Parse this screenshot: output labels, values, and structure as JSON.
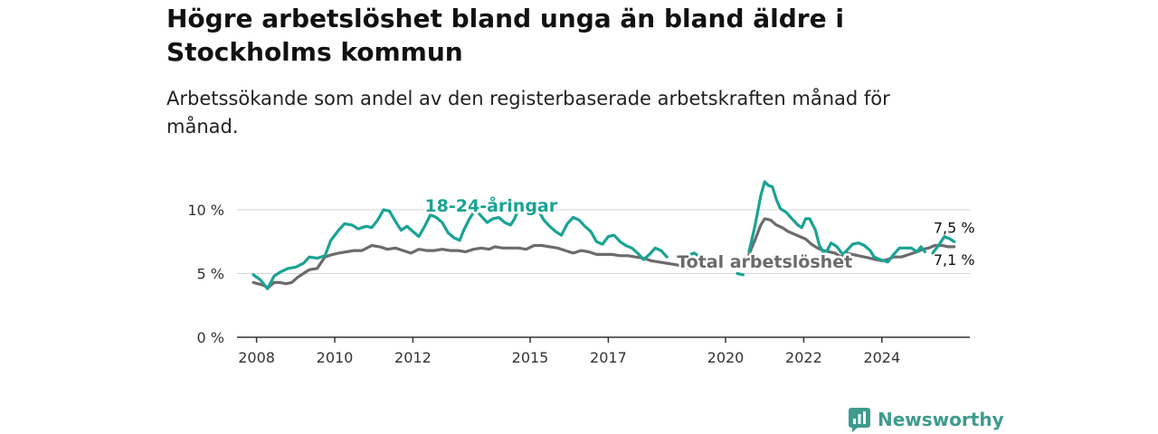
{
  "header": {
    "title": "Högre arbetslöshet bland unga än bland äldre i Stockholms kommun",
    "subtitle": "Arbetssökande som andel av den registerbaserade arbetskraften månad för månad."
  },
  "brand": {
    "name": "Newsworthy",
    "icon": "newsworthy-logo-icon",
    "color": "#3e9b8d"
  },
  "chart_data": {
    "type": "line",
    "title": "Högre arbetslöshet bland unga än bland äldre i Stockholms kommun",
    "subtitle": "Arbetssökande som andel av den registerbaserade arbetskraften månad för månad.",
    "xlabel": "",
    "ylabel": "",
    "x_ticks": [
      "2008",
      "2010",
      "2012",
      "2015",
      "2017",
      "2020",
      "2022",
      "2024"
    ],
    "y_ticks": [
      "0 %",
      "5 %",
      "10 %"
    ],
    "ylim": [
      0,
      13
    ],
    "grid": "horizontal",
    "series": [
      {
        "name": "18-24-åringar",
        "color": "#19a394",
        "points": [
          [
            2007.92,
            4.9
          ],
          [
            2008.1,
            4.5
          ],
          [
            2008.28,
            3.8
          ],
          [
            2008.45,
            4.8
          ],
          [
            2008.6,
            5.1
          ],
          [
            2008.8,
            5.4
          ],
          [
            2009.0,
            5.5
          ],
          [
            2009.2,
            5.8
          ],
          [
            2009.35,
            6.3
          ],
          [
            2009.55,
            6.2
          ],
          [
            2009.75,
            6.4
          ],
          [
            2009.9,
            7.6
          ],
          [
            2010.1,
            8.4
          ],
          [
            2010.25,
            8.9
          ],
          [
            2010.45,
            8.8
          ],
          [
            2010.6,
            8.5
          ],
          [
            2010.8,
            8.7
          ],
          [
            2010.95,
            8.6
          ],
          [
            2011.1,
            9.2
          ],
          [
            2011.25,
            10.0
          ],
          [
            2011.4,
            9.9
          ],
          [
            2011.55,
            9.1
          ],
          [
            2011.7,
            8.4
          ],
          [
            2011.85,
            8.7
          ],
          [
            2012.0,
            8.3
          ],
          [
            2012.15,
            7.9
          ],
          [
            2012.3,
            8.7
          ],
          [
            2012.45,
            9.6
          ],
          [
            2012.6,
            9.4
          ],
          [
            2012.75,
            9.0
          ],
          [
            2012.9,
            8.2
          ],
          [
            2013.05,
            7.8
          ],
          [
            2013.2,
            7.6
          ],
          [
            2013.3,
            8.4
          ],
          [
            2013.45,
            9.3
          ],
          [
            2013.6,
            10.0
          ],
          [
            2013.75,
            9.5
          ],
          [
            2013.9,
            9.0
          ],
          [
            2014.05,
            9.3
          ],
          [
            2014.2,
            9.4
          ],
          [
            2014.35,
            9.0
          ],
          [
            2014.5,
            8.8
          ],
          [
            2014.6,
            9.3
          ],
          [
            2014.7,
            10.0
          ],
          null,
          [
            2015.2,
            10.0
          ],
          [
            2015.35,
            9.2
          ],
          [
            2015.5,
            8.7
          ],
          [
            2015.65,
            8.3
          ],
          [
            2015.8,
            8.0
          ],
          [
            2015.95,
            8.9
          ],
          [
            2016.1,
            9.4
          ],
          [
            2016.25,
            9.2
          ],
          [
            2016.4,
            8.7
          ],
          [
            2016.55,
            8.3
          ],
          [
            2016.7,
            7.5
          ],
          [
            2016.85,
            7.3
          ],
          [
            2017.0,
            7.9
          ],
          [
            2017.15,
            8.0
          ],
          [
            2017.3,
            7.5
          ],
          [
            2017.45,
            7.2
          ],
          [
            2017.6,
            7.0
          ],
          [
            2017.75,
            6.6
          ],
          [
            2017.9,
            6.1
          ],
          [
            2018.05,
            6.5
          ],
          [
            2018.2,
            7.0
          ],
          [
            2018.35,
            6.8
          ],
          [
            2018.5,
            6.3
          ],
          null,
          [
            2019.1,
            6.5
          ],
          [
            2019.2,
            6.6
          ],
          [
            2019.3,
            6.4
          ],
          null,
          [
            2020.3,
            5.0
          ],
          [
            2020.45,
            4.9
          ],
          null,
          [
            2020.6,
            6.7
          ],
          [
            2020.75,
            8.7
          ],
          [
            2020.9,
            11.1
          ],
          [
            2021.0,
            12.2
          ],
          [
            2021.1,
            11.9
          ],
          [
            2021.2,
            11.8
          ],
          [
            2021.3,
            10.8
          ],
          [
            2021.4,
            10.1
          ],
          [
            2021.55,
            9.8
          ],
          [
            2021.7,
            9.3
          ],
          [
            2021.85,
            8.8
          ],
          [
            2021.95,
            8.6
          ],
          [
            2022.05,
            9.3
          ],
          [
            2022.15,
            9.3
          ],
          [
            2022.3,
            8.4
          ],
          [
            2022.4,
            7.2
          ],
          [
            2022.5,
            6.7
          ],
          [
            2022.6,
            6.8
          ],
          [
            2022.7,
            7.4
          ],
          [
            2022.85,
            7.1
          ],
          [
            2023.0,
            6.5
          ],
          [
            2023.1,
            6.8
          ],
          [
            2023.25,
            7.3
          ],
          [
            2023.4,
            7.4
          ],
          [
            2023.55,
            7.2
          ],
          [
            2023.7,
            6.8
          ],
          [
            2023.8,
            6.3
          ],
          [
            2023.95,
            6.1
          ],
          [
            2024.05,
            6.0
          ],
          [
            2024.15,
            5.9
          ],
          [
            2024.3,
            6.5
          ],
          [
            2024.45,
            7.0
          ],
          [
            2024.6,
            7.0
          ],
          [
            2024.75,
            7.0
          ],
          [
            2024.9,
            6.7
          ],
          [
            2025.0,
            7.1
          ],
          [
            2025.1,
            6.7
          ],
          null,
          [
            2025.3,
            6.6
          ],
          [
            2025.45,
            7.2
          ],
          [
            2025.6,
            7.9
          ],
          [
            2025.75,
            7.7
          ],
          [
            2025.85,
            7.5
          ]
        ]
      },
      {
        "name": "Total arbetslöshet",
        "color": "#6b6b6e",
        "points": [
          [
            2007.92,
            4.3
          ],
          [
            2008.15,
            4.1
          ],
          [
            2008.3,
            3.9
          ],
          [
            2008.45,
            4.3
          ],
          [
            2008.6,
            4.3
          ],
          [
            2008.75,
            4.2
          ],
          [
            2008.9,
            4.3
          ],
          [
            2009.05,
            4.7
          ],
          [
            2009.2,
            5.0
          ],
          [
            2009.35,
            5.3
          ],
          [
            2009.55,
            5.4
          ],
          [
            2009.75,
            6.3
          ],
          [
            2009.95,
            6.5
          ],
          [
            2010.1,
            6.6
          ],
          [
            2010.3,
            6.7
          ],
          [
            2010.5,
            6.8
          ],
          [
            2010.7,
            6.8
          ],
          [
            2010.95,
            7.2
          ],
          [
            2011.15,
            7.1
          ],
          [
            2011.35,
            6.9
          ],
          [
            2011.55,
            7.0
          ],
          [
            2011.75,
            6.8
          ],
          [
            2011.95,
            6.6
          ],
          [
            2012.15,
            6.9
          ],
          [
            2012.35,
            6.8
          ],
          [
            2012.55,
            6.8
          ],
          [
            2012.75,
            6.9
          ],
          [
            2012.95,
            6.8
          ],
          [
            2013.15,
            6.8
          ],
          [
            2013.35,
            6.7
          ],
          [
            2013.55,
            6.9
          ],
          [
            2013.75,
            7.0
          ],
          [
            2013.95,
            6.9
          ],
          [
            2014.1,
            7.1
          ],
          [
            2014.3,
            7.0
          ],
          [
            2014.5,
            7.0
          ],
          [
            2014.7,
            7.0
          ],
          [
            2014.9,
            6.9
          ],
          [
            2015.1,
            7.2
          ],
          [
            2015.3,
            7.2
          ],
          [
            2015.5,
            7.1
          ],
          [
            2015.7,
            7.0
          ],
          [
            2015.9,
            6.8
          ],
          [
            2016.1,
            6.6
          ],
          [
            2016.3,
            6.8
          ],
          [
            2016.5,
            6.7
          ],
          [
            2016.7,
            6.5
          ],
          [
            2016.9,
            6.5
          ],
          [
            2017.1,
            6.5
          ],
          [
            2017.3,
            6.4
          ],
          [
            2017.5,
            6.4
          ],
          [
            2017.7,
            6.3
          ],
          [
            2017.9,
            6.2
          ],
          [
            2018.1,
            6.0
          ],
          [
            2018.3,
            5.9
          ],
          [
            2018.5,
            5.8
          ],
          [
            2018.7,
            5.7
          ],
          [
            2018.9,
            5.6
          ],
          [
            2019.1,
            5.4
          ],
          null,
          [
            2020.6,
            6.5
          ],
          [
            2020.75,
            7.6
          ],
          [
            2020.9,
            8.8
          ],
          [
            2021.0,
            9.3
          ],
          [
            2021.15,
            9.2
          ],
          [
            2021.3,
            8.8
          ],
          [
            2021.45,
            8.6
          ],
          [
            2021.6,
            8.3
          ],
          [
            2021.75,
            8.1
          ],
          [
            2021.9,
            7.9
          ],
          [
            2022.05,
            7.7
          ],
          [
            2022.2,
            7.3
          ],
          [
            2022.35,
            7.0
          ],
          [
            2022.5,
            6.8
          ],
          [
            2022.65,
            6.7
          ],
          [
            2022.8,
            6.6
          ],
          [
            2022.95,
            6.3
          ],
          [
            2023.1,
            6.6
          ],
          [
            2023.25,
            6.5
          ],
          [
            2023.4,
            6.4
          ],
          [
            2023.55,
            6.3
          ],
          [
            2023.7,
            6.2
          ],
          [
            2023.85,
            6.1
          ],
          [
            2024.0,
            6.0
          ],
          [
            2024.15,
            6.1
          ],
          [
            2024.3,
            6.3
          ],
          [
            2024.5,
            6.3
          ],
          [
            2024.7,
            6.5
          ],
          [
            2024.9,
            6.7
          ],
          [
            2025.05,
            6.9
          ],
          [
            2025.2,
            7.0
          ],
          [
            2025.35,
            7.2
          ],
          [
            2025.55,
            7.2
          ],
          [
            2025.7,
            7.1
          ],
          [
            2025.85,
            7.1
          ]
        ]
      }
    ],
    "annotations": [
      {
        "text": "18-24-åringar",
        "series": "18-24-åringar",
        "x": 2014.0,
        "y": 10.3
      },
      {
        "text": "Total arbetslöshet",
        "series": "Total arbetslöshet",
        "x": 2021.0,
        "y": 5.9
      },
      {
        "text": "7,5 %",
        "x": 2025.85,
        "y": 8.6
      },
      {
        "text": "7,1 %",
        "x": 2025.85,
        "y": 6.1
      }
    ]
  }
}
